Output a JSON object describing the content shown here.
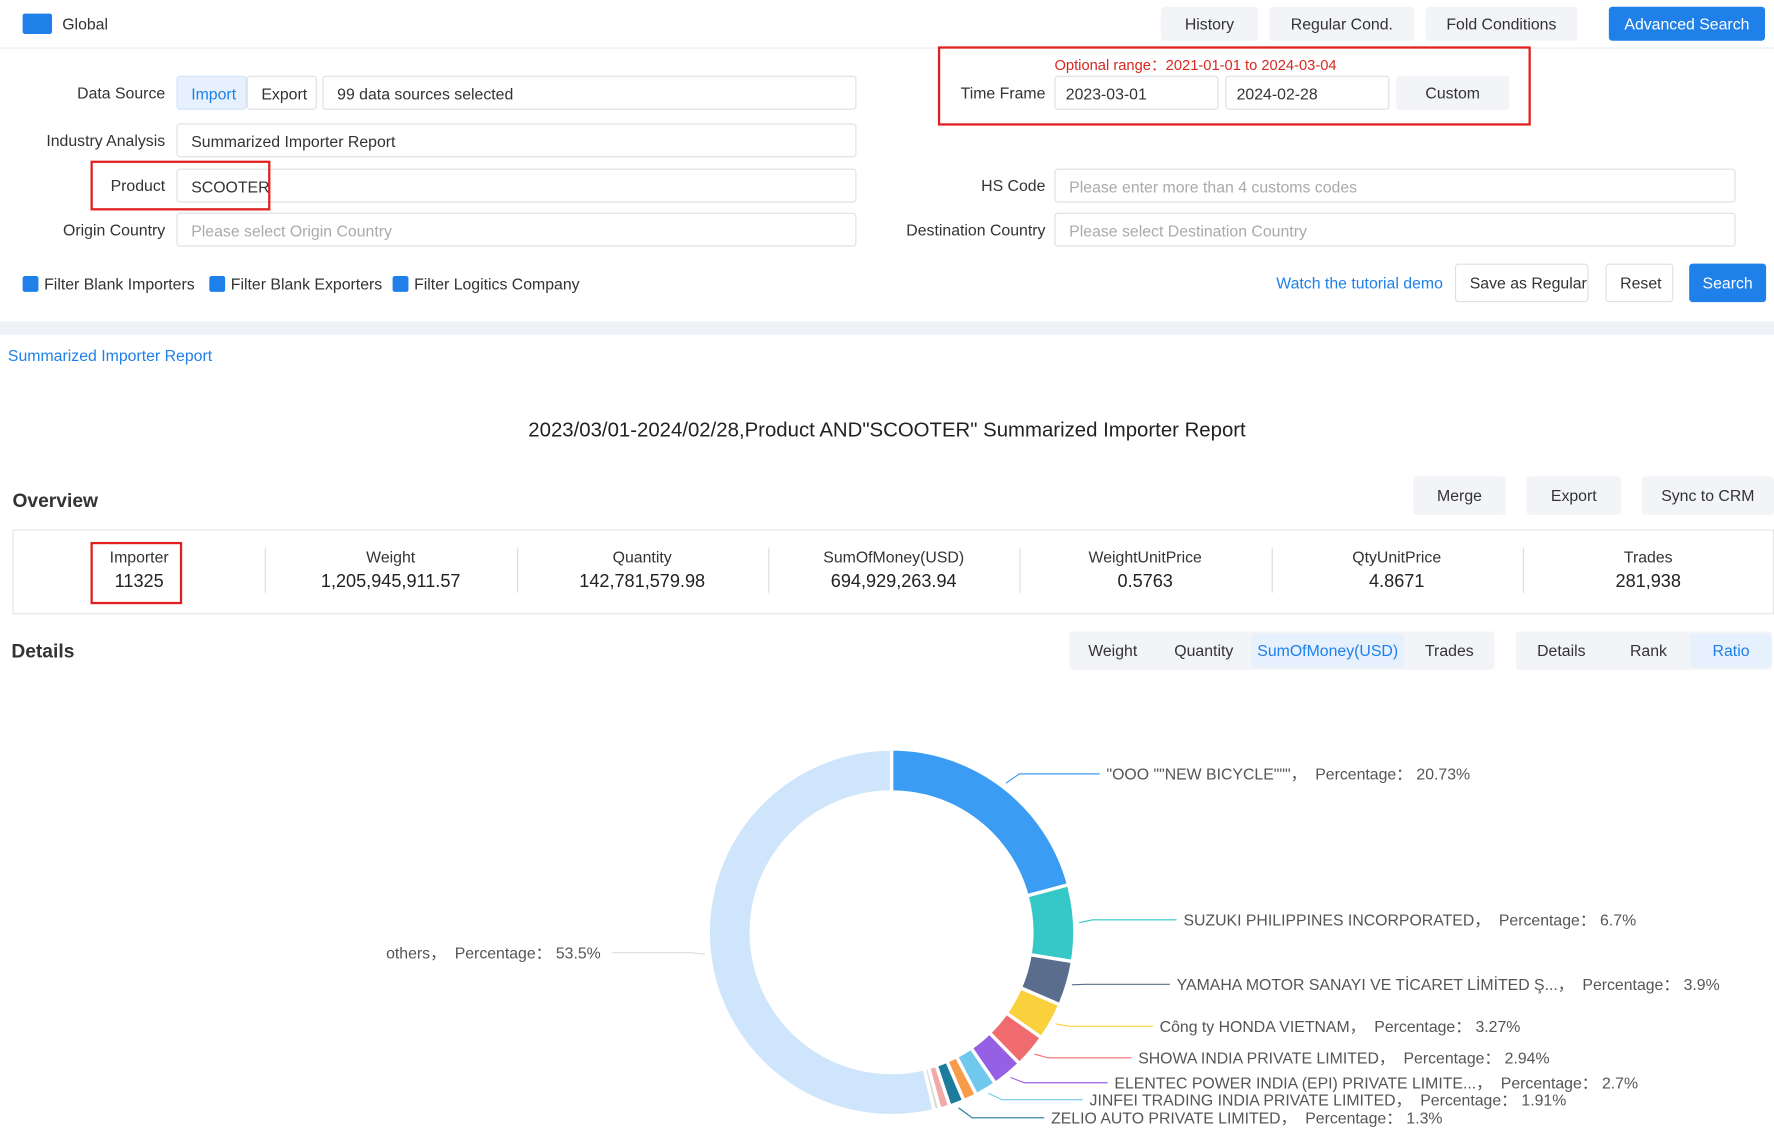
{
  "top_bar": {
    "scope": "Global",
    "buttons": [
      "History",
      "Regular Cond.",
      "Fold Conditions",
      "Advanced Search"
    ]
  },
  "filters": {
    "optional_range_label": "Optional range：",
    "optional_range": "2021-01-01 to 2024-03-04",
    "data_source_label": "Data Source",
    "import": "Import",
    "export": "Export",
    "data_sources": "99 data sources selected",
    "time_frame_label": "Time Frame",
    "start_date": "2023-03-01",
    "end_date": "2024-02-28",
    "custom": "Custom",
    "industry_label": "Industry Analysis",
    "industry": "Summarized Importer Report",
    "product_label": "Product",
    "product": "SCOOTER",
    "hs_label": "HS Code",
    "hs_placeholder": "Please enter more than 4 customs codes",
    "origin_label": "Origin Country",
    "origin_placeholder": "Please select Origin Country",
    "dest_label": "Destination Country",
    "dest_placeholder": "Please select Destination Country",
    "checkboxes": [
      "Filter Blank Importers",
      "Filter Blank Exporters",
      "Filter Logitics Company"
    ],
    "tutorial": "Watch the tutorial demo",
    "save": "Save as Regular",
    "reset": "Reset",
    "search": "Search"
  },
  "tab": "Summarized Importer Report",
  "report_title": "2023/03/01-2024/02/28,Product AND\"SCOOTER\" Summarized Importer Report",
  "overview": {
    "title": "Overview",
    "actions": [
      "Merge",
      "Export",
      "Sync to CRM"
    ],
    "stats": [
      {
        "label": "Importer",
        "value": "11325"
      },
      {
        "label": "Weight",
        "value": "1,205,945,911.57"
      },
      {
        "label": "Quantity",
        "value": "142,781,579.98"
      },
      {
        "label": "SumOfMoney(USD)",
        "value": "694,929,263.94"
      },
      {
        "label": "WeightUnitPrice",
        "value": "0.5763"
      },
      {
        "label": "QtyUnitPrice",
        "value": "4.8671"
      },
      {
        "label": "Trades",
        "value": "281,938"
      }
    ]
  },
  "details": {
    "title": "Details",
    "metric_tabs": [
      "Weight",
      "Quantity",
      "SumOfMoney(USD)",
      "Trades"
    ],
    "active_metric": 2,
    "view_tabs": [
      "Details",
      "Rank",
      "Ratio"
    ],
    "active_view": 2
  },
  "chart": {
    "type": "donut",
    "slices": [
      {
        "label": "\"OOO \"\"NEW BICYCLE\"\"\"，  Percentage： 20.73%",
        "value": 20.73,
        "color": "#3a9cf3"
      },
      {
        "label": "SUZUKI PHILIPPINES INCORPORATED，  Percentage： 6.7%",
        "value": 6.7,
        "color": "#35c8c6"
      },
      {
        "label": "YAMAHA MOTOR SANAYI VE TİCARET LİMİTED Ş...，  Percentage： 3.9%",
        "value": 3.9,
        "color": "#5a6d8c"
      },
      {
        "label": "Công ty HONDA VIETNAM，  Percentage： 3.27%",
        "value": 3.27,
        "color": "#fad03d"
      },
      {
        "label": "SHOWA INDIA PRIVATE LIMITED，  Percentage： 2.94%",
        "value": 2.94,
        "color": "#f06b6e"
      },
      {
        "label": "ELENTEC POWER INDIA (EPI) PRIVATE LIMITE...，  Percentage： 2.7%",
        "value": 2.7,
        "color": "#9660e4"
      },
      {
        "label": "JINFEI TRADING INDIA PRIVATE LIMITED，  Percentage： 1.91%",
        "value": 1.91,
        "color": "#70c8ec"
      },
      {
        "value": 1.2,
        "color": "#f89c4a"
      },
      {
        "label": "ZELIO AUTO PRIVATE LIMITED，  Percentage： 1.3%",
        "value": 1.3,
        "color": "#1d7c9c"
      },
      {
        "value": 0.9,
        "color": "#f2aaa8"
      },
      {
        "value": 0.5,
        "color": "#d9d9d9"
      },
      {
        "label": "others，  Percentage： 53.5%",
        "value": 53.5,
        "color": "#cfe5fb"
      }
    ]
  }
}
